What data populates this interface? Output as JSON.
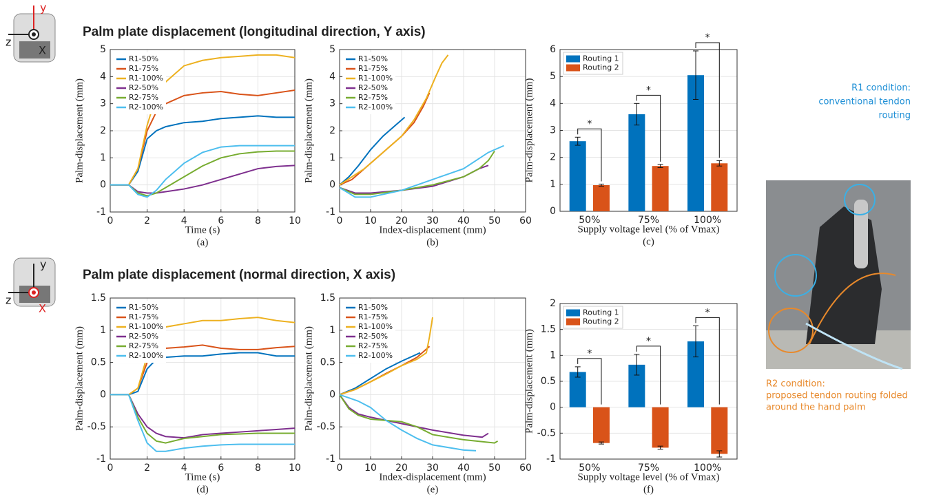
{
  "headings": [
    "Palm plate displacement (longitudinal direction, Y axis)",
    "Palm plate displacement (normal direction, X axis)"
  ],
  "icons": [
    {
      "y": "y",
      "z": "z",
      "x": "X"
    },
    {
      "y": "y",
      "z": "z",
      "x": "X"
    }
  ],
  "notes": {
    "r1": [
      "R1 condition:",
      "conventional tendon",
      "routing"
    ],
    "r2": [
      "R2 condition:",
      "proposed tendon routing folded",
      "around the hand palm"
    ]
  },
  "chart_data": [
    {
      "type": "line",
      "caption": "(a)",
      "x_label": "Time (s)",
      "y_label": "Palm-displacement (mm)",
      "legend": "upper left",
      "grid": true,
      "xlim": [
        0,
        10
      ],
      "xticks": [
        0,
        2,
        4,
        6,
        8,
        10
      ],
      "ylim": [
        -1,
        5
      ],
      "yticks": [
        -1,
        0,
        1,
        2,
        3,
        4,
        5
      ],
      "x": [
        0,
        1,
        1.5,
        2,
        2.5,
        3,
        4,
        5,
        6,
        7,
        8,
        9,
        10
      ],
      "series": [
        {
          "name": "R1-50%",
          "color": "#0072bd",
          "values": [
            0,
            0,
            0.5,
            1.7,
            2.0,
            2.15,
            2.3,
            2.35,
            2.45,
            2.5,
            2.55,
            2.5,
            2.5
          ]
        },
        {
          "name": "R1-75%",
          "color": "#d95319",
          "values": [
            0,
            0,
            0.6,
            2.0,
            2.7,
            3.0,
            3.3,
            3.4,
            3.45,
            3.35,
            3.3,
            3.4,
            3.5
          ]
        },
        {
          "name": "R1-100%",
          "color": "#edb120",
          "values": [
            0,
            0,
            0.6,
            2.2,
            3.3,
            3.8,
            4.4,
            4.6,
            4.7,
            4.75,
            4.8,
            4.8,
            4.7
          ]
        },
        {
          "name": "R2-50%",
          "color": "#7e2f8e",
          "values": [
            0,
            0,
            -0.25,
            -0.3,
            -0.3,
            -0.25,
            -0.15,
            0,
            0.2,
            0.4,
            0.6,
            0.68,
            0.72
          ]
        },
        {
          "name": "R2-75%",
          "color": "#77ac30",
          "values": [
            0,
            0,
            -0.3,
            -0.4,
            -0.3,
            -0.1,
            0.3,
            0.7,
            1.0,
            1.15,
            1.22,
            1.25,
            1.25
          ]
        },
        {
          "name": "R2-100%",
          "color": "#4dbeee",
          "values": [
            0,
            0,
            -0.35,
            -0.45,
            -0.2,
            0.2,
            0.8,
            1.2,
            1.4,
            1.45,
            1.45,
            1.45,
            1.45
          ]
        }
      ]
    },
    {
      "type": "line",
      "caption": "(b)",
      "x_label": "Index-displacement (mm)",
      "y_label": "Palm-displacement (mm)",
      "legend": "upper left",
      "grid": true,
      "xlim": [
        0,
        60
      ],
      "xticks": [
        0,
        10,
        20,
        30,
        40,
        50,
        60
      ],
      "ylim": [
        -1,
        5
      ],
      "yticks": [
        -1,
        0,
        1,
        2,
        3,
        4,
        5
      ],
      "series": [
        {
          "name": "R1-50%",
          "color": "#0072bd",
          "x": [
            0,
            3,
            6,
            10,
            14,
            18,
            21
          ],
          "values": [
            0,
            0.3,
            0.7,
            1.3,
            1.8,
            2.2,
            2.5
          ]
        },
        {
          "name": "R1-75%",
          "color": "#d95319",
          "x": [
            0,
            4,
            8,
            12,
            16,
            20,
            24,
            27,
            29
          ],
          "values": [
            0,
            0.2,
            0.6,
            1.0,
            1.4,
            1.8,
            2.3,
            2.9,
            3.4
          ]
        },
        {
          "name": "R1-100%",
          "color": "#edb120",
          "x": [
            0,
            4,
            8,
            12,
            16,
            20,
            24,
            28,
            31,
            33,
            35
          ],
          "values": [
            0,
            0.3,
            0.6,
            1.0,
            1.4,
            1.8,
            2.4,
            3.2,
            4.0,
            4.5,
            4.8
          ]
        },
        {
          "name": "R2-50%",
          "color": "#7e2f8e",
          "x": [
            0,
            5,
            10,
            20,
            30,
            40,
            45,
            48
          ],
          "values": [
            -0.1,
            -0.3,
            -0.3,
            -0.2,
            -0.05,
            0.3,
            0.6,
            0.72
          ]
        },
        {
          "name": "R2-75%",
          "color": "#77ac30",
          "x": [
            0,
            5,
            10,
            20,
            30,
            40,
            45,
            48,
            50
          ],
          "values": [
            -0.1,
            -0.35,
            -0.35,
            -0.2,
            0,
            0.3,
            0.6,
            0.9,
            1.25
          ]
        },
        {
          "name": "R2-100%",
          "color": "#4dbeee",
          "x": [
            0,
            5,
            10,
            20,
            30,
            40,
            48,
            53
          ],
          "values": [
            -0.1,
            -0.45,
            -0.45,
            -0.2,
            0.2,
            0.6,
            1.2,
            1.45
          ]
        }
      ]
    },
    {
      "type": "bar",
      "caption": "(c)",
      "x_label": "Supply voltage level (% of Vmax)",
      "y_label": "Palm-displacement (mm)",
      "legend": "upper left",
      "grid": true,
      "categories": [
        "50%",
        "75%",
        "100%"
      ],
      "ylim": [
        0,
        6
      ],
      "yticks": [
        0,
        1,
        2,
        3,
        4,
        5,
        6
      ],
      "significance": [
        "*",
        "*",
        "*"
      ],
      "series": [
        {
          "name": "Routing 1",
          "color": "#0072bd",
          "values": [
            2.6,
            3.6,
            5.05
          ],
          "errors": [
            0.15,
            0.4,
            0.9
          ]
        },
        {
          "name": "Routing 2",
          "color": "#d95319",
          "values": [
            0.97,
            1.68,
            1.78
          ],
          "errors": [
            0.04,
            0.06,
            0.1
          ]
        }
      ]
    },
    {
      "type": "line",
      "caption": "(d)",
      "x_label": "Time (s)",
      "y_label": "Palm-displacement (mm)",
      "legend": "upper left",
      "grid": true,
      "xlim": [
        0,
        10
      ],
      "xticks": [
        0,
        2,
        4,
        6,
        8,
        10
      ],
      "ylim": [
        -1,
        1.5
      ],
      "yticks": [
        -1,
        -0.5,
        0,
        0.5,
        1,
        1.5
      ],
      "x": [
        0,
        1,
        1.5,
        2,
        2.5,
        3,
        4,
        5,
        6,
        7,
        8,
        9,
        10
      ],
      "series": [
        {
          "name": "R1-50%",
          "color": "#0072bd",
          "values": [
            0,
            0,
            0.05,
            0.4,
            0.55,
            0.58,
            0.6,
            0.6,
            0.63,
            0.65,
            0.65,
            0.6,
            0.6
          ]
        },
        {
          "name": "R1-75%",
          "color": "#d95319",
          "values": [
            0,
            0,
            0.1,
            0.5,
            0.7,
            0.72,
            0.74,
            0.77,
            0.72,
            0.7,
            0.7,
            0.73,
            0.75
          ]
        },
        {
          "name": "R1-100%",
          "color": "#edb120",
          "values": [
            0,
            0,
            0.1,
            0.6,
            0.95,
            1.05,
            1.1,
            1.15,
            1.15,
            1.18,
            1.2,
            1.15,
            1.12
          ]
        },
        {
          "name": "R2-50%",
          "color": "#7e2f8e",
          "values": [
            0,
            0,
            -0.3,
            -0.5,
            -0.6,
            -0.65,
            -0.67,
            -0.62,
            -0.6,
            -0.58,
            -0.56,
            -0.54,
            -0.52
          ]
        },
        {
          "name": "R2-75%",
          "color": "#77ac30",
          "values": [
            0,
            0,
            -0.35,
            -0.6,
            -0.72,
            -0.75,
            -0.68,
            -0.65,
            -0.62,
            -0.61,
            -0.6,
            -0.6,
            -0.6
          ]
        },
        {
          "name": "R2-100%",
          "color": "#4dbeee",
          "values": [
            0,
            0,
            -0.4,
            -0.75,
            -0.88,
            -0.88,
            -0.83,
            -0.8,
            -0.78,
            -0.77,
            -0.77,
            -0.77,
            -0.77
          ]
        }
      ]
    },
    {
      "type": "line",
      "caption": "(e)",
      "x_label": "Index-displacement (mm)",
      "y_label": "Palm-displacement (mm)",
      "legend": "upper left",
      "grid": true,
      "xlim": [
        0,
        60
      ],
      "xticks": [
        0,
        10,
        20,
        30,
        40,
        50,
        60
      ],
      "ylim": [
        -1,
        1.5
      ],
      "yticks": [
        -1,
        -0.5,
        0,
        0.5,
        1,
        1.5
      ],
      "series": [
        {
          "name": "R1-50%",
          "color": "#0072bd",
          "x": [
            0,
            5,
            10,
            15,
            20,
            26
          ],
          "values": [
            0,
            0.1,
            0.25,
            0.4,
            0.52,
            0.65
          ]
        },
        {
          "name": "R1-75%",
          "color": "#d95319",
          "x": [
            0,
            5,
            10,
            15,
            20,
            25,
            29
          ],
          "values": [
            0,
            0.08,
            0.2,
            0.33,
            0.45,
            0.58,
            0.75
          ]
        },
        {
          "name": "R1-100%",
          "color": "#edb120",
          "x": [
            0,
            5,
            10,
            15,
            20,
            25,
            28,
            29,
            30
          ],
          "values": [
            0,
            0.08,
            0.2,
            0.32,
            0.45,
            0.55,
            0.65,
            0.9,
            1.2
          ]
        },
        {
          "name": "R2-50%",
          "color": "#7e2f8e",
          "x": [
            0,
            3,
            6,
            10,
            20,
            30,
            40,
            46,
            48
          ],
          "values": [
            0,
            -0.2,
            -0.3,
            -0.35,
            -0.45,
            -0.55,
            -0.63,
            -0.66,
            -0.6
          ]
        },
        {
          "name": "R2-75%",
          "color": "#77ac30",
          "x": [
            0,
            3,
            6,
            10,
            20,
            25,
            30,
            40,
            50,
            51
          ],
          "values": [
            0,
            -0.22,
            -0.32,
            -0.38,
            -0.42,
            -0.5,
            -0.62,
            -0.7,
            -0.75,
            -0.72
          ]
        },
        {
          "name": "R2-100%",
          "color": "#4dbeee",
          "x": [
            0,
            3,
            6,
            10,
            15,
            20,
            25,
            30,
            40,
            44
          ],
          "values": [
            0,
            -0.05,
            -0.1,
            -0.2,
            -0.4,
            -0.55,
            -0.68,
            -0.78,
            -0.86,
            -0.87
          ]
        }
      ]
    },
    {
      "type": "bar",
      "caption": "(f)",
      "x_label": "Supply voltage level (% of Vmax)",
      "y_label": "Palm-displacement (mm)",
      "legend": "upper left",
      "grid": true,
      "categories": [
        "50%",
        "75%",
        "100%"
      ],
      "ylim": [
        -1,
        2
      ],
      "yticks": [
        -1,
        -0.5,
        0,
        0.5,
        1,
        1.5,
        2
      ],
      "significance": [
        "*",
        "*",
        "*"
      ],
      "series": [
        {
          "name": "Routing 1",
          "color": "#0072bd",
          "values": [
            0.68,
            0.82,
            1.27
          ],
          "errors": [
            0.1,
            0.2,
            0.3
          ]
        },
        {
          "name": "Routing 2",
          "color": "#d95319",
          "values": [
            -0.69,
            -0.78,
            -0.9
          ],
          "errors": [
            0.02,
            0.03,
            0.06
          ]
        }
      ]
    }
  ]
}
